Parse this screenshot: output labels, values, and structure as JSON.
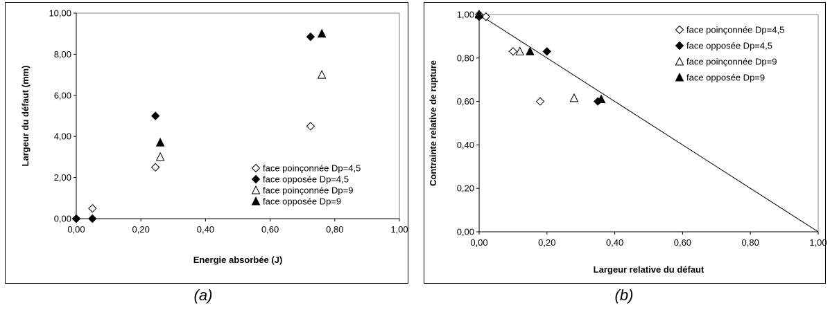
{
  "captions": {
    "a": "(a)",
    "b": "(b)"
  },
  "chart_data": [
    {
      "type": "scatter",
      "xlabel": "Energie absorbée (J)",
      "ylabel": "Largeur du défaut (mm)",
      "xlim": [
        0,
        1
      ],
      "ylim": [
        0,
        10
      ],
      "x_ticks": [
        "0,00",
        "0,20",
        "0,40",
        "0,60",
        "0,80",
        "1,00"
      ],
      "y_ticks": [
        "0,00",
        "2,00",
        "4,00",
        "6,00",
        "8,00",
        "10,00"
      ],
      "grid": false,
      "legend_position": "bottom-right",
      "series": [
        {
          "name": "face poinçonnée Dp=4,5",
          "marker": "diamond-open",
          "x": [
            0.0,
            0.05,
            0.245,
            0.725
          ],
          "y": [
            0.0,
            0.5,
            2.5,
            4.5
          ]
        },
        {
          "name": "face opposée Dp=4,5",
          "marker": "diamond-filled",
          "x": [
            0.0,
            0.05,
            0.245,
            0.725
          ],
          "y": [
            0.0,
            0.0,
            5.0,
            8.85
          ]
        },
        {
          "name": "face poinçonnée Dp=9",
          "marker": "triangle-open",
          "x": [
            0.26,
            0.76
          ],
          "y": [
            3.0,
            7.0
          ]
        },
        {
          "name": "face opposée Dp=9",
          "marker": "triangle-filled",
          "x": [
            0.26,
            0.76
          ],
          "y": [
            3.7,
            9.0
          ]
        }
      ]
    },
    {
      "type": "scatter",
      "xlabel": "Largeur relative du défaut",
      "ylabel": "Contrainte relative de rupture",
      "xlim": [
        0,
        1
      ],
      "ylim": [
        0,
        1
      ],
      "x_ticks": [
        "0,00",
        "0,20",
        "0,40",
        "0,60",
        "0,80",
        "1,00"
      ],
      "y_ticks": [
        "0,00",
        "0,20",
        "0,40",
        "0,60",
        "0,80",
        "1,00"
      ],
      "grid": false,
      "legend_position": "top-right",
      "reference_line": {
        "x": [
          0,
          1
        ],
        "y": [
          1,
          0
        ]
      },
      "series": [
        {
          "name": "face poinçonnée Dp=4,5",
          "marker": "diamond-open",
          "x": [
            0.0,
            0.02,
            0.1,
            0.18
          ],
          "y": [
            1.0,
            0.99,
            0.83,
            0.6
          ]
        },
        {
          "name": "face opposée Dp=4,5",
          "marker": "diamond-filled",
          "x": [
            0.0,
            0.2,
            0.35
          ],
          "y": [
            0.99,
            0.83,
            0.6
          ]
        },
        {
          "name": "face poinçonnée Dp=9",
          "marker": "triangle-open",
          "x": [
            0.0,
            0.12,
            0.28
          ],
          "y": [
            1.0,
            0.83,
            0.615
          ]
        },
        {
          "name": "face opposée Dp=9",
          "marker": "triangle-filled",
          "x": [
            0.0,
            0.15,
            0.36
          ],
          "y": [
            1.0,
            0.83,
            0.61
          ]
        }
      ]
    }
  ]
}
